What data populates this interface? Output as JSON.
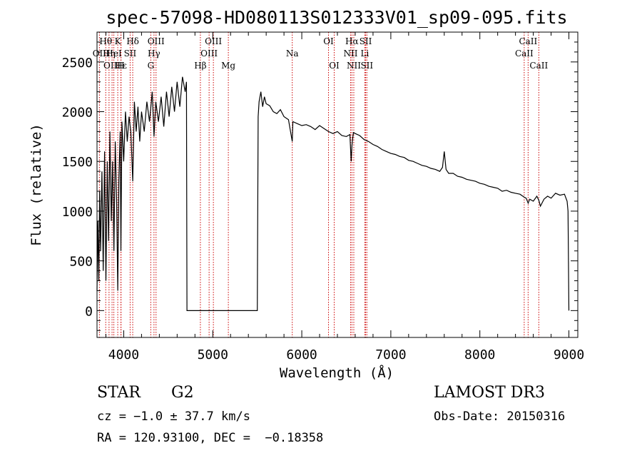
{
  "chart_data": {
    "type": "line",
    "title": "spec-57098-HD080113S012333V01_sp09-095.fits",
    "xlabel": "Wavelength (Å)",
    "ylabel": "Flux (relative)",
    "xlim": [
      3700,
      9100
    ],
    "ylim": [
      -270,
      2800
    ],
    "xticks": [
      4000,
      5000,
      6000,
      7000,
      8000,
      9000
    ],
    "yticks": [
      0,
      500,
      1000,
      1500,
      2000,
      2500
    ],
    "grid": false,
    "legend": "none",
    "series": [
      {
        "name": "flux",
        "x": [
          3700,
          3710,
          3720,
          3730,
          3740,
          3755,
          3770,
          3785,
          3800,
          3815,
          3830,
          3845,
          3860,
          3875,
          3890,
          3905,
          3920,
          3933,
          3945,
          3960,
          3968,
          3980,
          4000,
          4020,
          4040,
          4060,
          4080,
          4101,
          4120,
          4140,
          4160,
          4180,
          4200,
          4230,
          4260,
          4290,
          4320,
          4340,
          4360,
          4390,
          4420,
          4450,
          4480,
          4510,
          4540,
          4570,
          4600,
          4630,
          4660,
          4690,
          4705,
          4710,
          5000,
          5500,
          5510,
          5520,
          5540,
          5560,
          5580,
          5600,
          5640,
          5680,
          5720,
          5760,
          5800,
          5850,
          5893,
          5900,
          5950,
          6000,
          6050,
          6100,
          6150,
          6200,
          6250,
          6300,
          6350,
          6400,
          6450,
          6500,
          6540,
          6555,
          6563,
          6570,
          6580,
          6600,
          6650,
          6700,
          6750,
          6800,
          6850,
          6900,
          6950,
          7000,
          7050,
          7100,
          7150,
          7200,
          7250,
          7300,
          7350,
          7400,
          7450,
          7500,
          7550,
          7580,
          7600,
          7620,
          7650,
          7700,
          7750,
          7800,
          7850,
          7900,
          7950,
          8000,
          8050,
          8100,
          8150,
          8200,
          8250,
          8300,
          8350,
          8400,
          8450,
          8498,
          8520,
          8542,
          8560,
          8600,
          8640,
          8662,
          8680,
          8720,
          8760,
          8800,
          8850,
          8900,
          8950,
          8980,
          8990,
          9000
        ],
        "values": [
          200,
          900,
          300,
          1200,
          600,
          1400,
          400,
          1600,
          300,
          1500,
          700,
          1800,
          900,
          1500,
          600,
          1700,
          1100,
          200,
          1300,
          1800,
          600,
          1900,
          1500,
          2000,
          1700,
          1950,
          1800,
          1300,
          2100,
          1800,
          2050,
          1700,
          2000,
          1800,
          2100,
          1900,
          2200,
          1750,
          2100,
          1900,
          2150,
          1850,
          2200,
          1950,
          2250,
          2000,
          2300,
          2050,
          2350,
          2200,
          2300,
          0,
          0,
          0,
          1950,
          2100,
          2200,
          2050,
          2150,
          2080,
          2060,
          2000,
          1980,
          2020,
          1950,
          1920,
          1700,
          1900,
          1880,
          1860,
          1870,
          1850,
          1820,
          1860,
          1830,
          1800,
          1780,
          1800,
          1760,
          1750,
          1770,
          1500,
          1650,
          1720,
          1790,
          1780,
          1760,
          1720,
          1700,
          1670,
          1650,
          1620,
          1600,
          1580,
          1570,
          1550,
          1540,
          1510,
          1500,
          1480,
          1460,
          1450,
          1430,
          1420,
          1400,
          1440,
          1600,
          1420,
          1380,
          1380,
          1350,
          1340,
          1320,
          1310,
          1300,
          1280,
          1270,
          1250,
          1240,
          1230,
          1200,
          1210,
          1190,
          1180,
          1170,
          1140,
          1130,
          1080,
          1120,
          1100,
          1150,
          1110,
          1050,
          1120,
          1150,
          1130,
          1180,
          1160,
          1170,
          1100,
          1000,
          0
        ]
      }
    ],
    "spectral_lines": [
      {
        "label": "OII",
        "wavelength": 3727,
        "row": 2
      },
      {
        "label": "Hθ",
        "wavelength": 3798,
        "row": 1
      },
      {
        "label": "OIII",
        "wavelength": 3869,
        "row": 3
      },
      {
        "label": "Hη",
        "wavelength": 3835,
        "row": 2
      },
      {
        "label": "Hε",
        "wavelength": 3970,
        "row": 3
      },
      {
        "label": "K",
        "wavelength": 3933,
        "row": 1
      },
      {
        "label": "H",
        "wavelength": 3968,
        "row": 3
      },
      {
        "label": "HeI",
        "wavelength": 3889,
        "row": 2
      },
      {
        "label": "Hδ",
        "wavelength": 4101,
        "row": 1
      },
      {
        "label": "SII",
        "wavelength": 4072,
        "row": 2
      },
      {
        "label": "OIII",
        "wavelength": 4363,
        "row": 1
      },
      {
        "label": "Hγ",
        "wavelength": 4340,
        "row": 2
      },
      {
        "label": "G",
        "wavelength": 4304,
        "row": 3
      },
      {
        "label": "Hβ",
        "wavelength": 4861,
        "row": 3
      },
      {
        "label": "OIII",
        "wavelength": 4959,
        "row": 2
      },
      {
        "label": "OIII",
        "wavelength": 5007,
        "row": 1
      },
      {
        "label": "Mg",
        "wavelength": 5175,
        "row": 3
      },
      {
        "label": "Na",
        "wavelength": 5893,
        "row": 2
      },
      {
        "label": "OI",
        "wavelength": 6300,
        "row": 1
      },
      {
        "label": "OI",
        "wavelength": 6364,
        "row": 3
      },
      {
        "label": "NII",
        "wavelength": 6548,
        "row": 2
      },
      {
        "label": "Hα",
        "wavelength": 6563,
        "row": 1
      },
      {
        "label": "NII",
        "wavelength": 6584,
        "row": 3
      },
      {
        "label": "SII",
        "wavelength": 6717,
        "row": 1
      },
      {
        "label": "Li",
        "wavelength": 6708,
        "row": 2
      },
      {
        "label": "SII",
        "wavelength": 6731,
        "row": 3
      },
      {
        "label": "CaII",
        "wavelength": 8542,
        "row": 1
      },
      {
        "label": "CaII",
        "wavelength": 8498,
        "row": 2
      },
      {
        "label": "CaII",
        "wavelength": 8662,
        "row": 3
      }
    ]
  },
  "info": {
    "object_class": "STAR",
    "subclass": "G2",
    "cz": "cz = −1.0 ± 37.7 km/s",
    "coords": "RA = 120.93100, DEC =  −0.18358",
    "survey": "LAMOST DR3",
    "obs_date": "Obs-Date: 20150316"
  },
  "colors": {
    "line_marker": "#cc0000",
    "spectrum": "#000000",
    "axis": "#000000"
  }
}
